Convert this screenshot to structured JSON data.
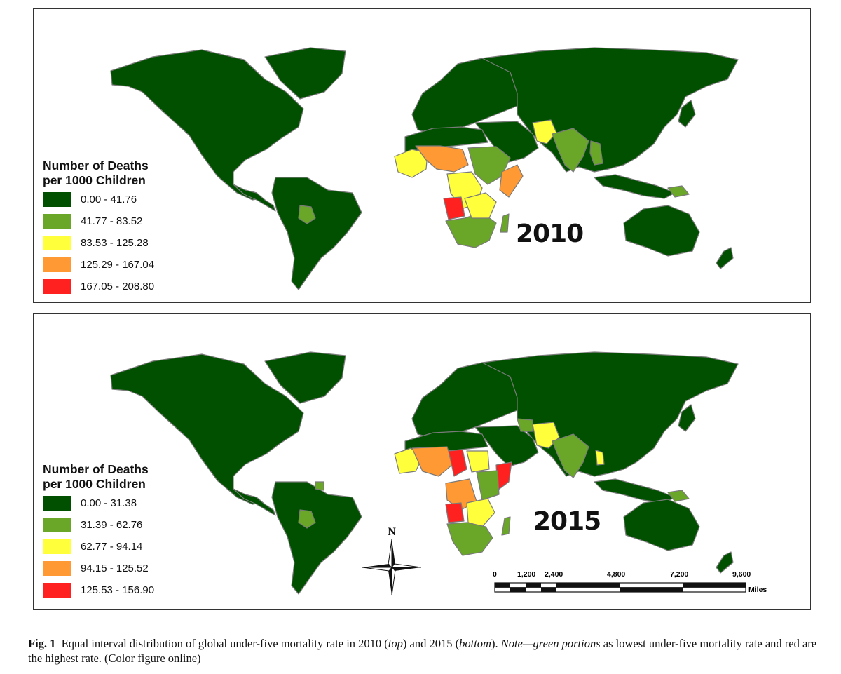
{
  "colors": {
    "class_1": "#005000",
    "class_2": "#6aa628",
    "class_3": "#ffff3c",
    "class_4": "#ff9933",
    "class_5": "#ff2020",
    "border": "#7a7a7a"
  },
  "maps": [
    {
      "year_label": "2010",
      "legend": {
        "title_line1": "Number of Deaths",
        "title_line2": "per 1000 Children",
        "classes": [
          {
            "label": "0.00 - 41.76",
            "color": "#005000"
          },
          {
            "label": "41.77 - 83.52",
            "color": "#6aa628"
          },
          {
            "label": "83.53 - 125.28",
            "color": "#ffff3c"
          },
          {
            "label": "125.29 - 167.04",
            "color": "#ff9933"
          },
          {
            "label": "167.05 - 208.80",
            "color": "#ff2020"
          }
        ]
      }
    },
    {
      "year_label": "2015",
      "legend": {
        "title_line1": "Number of Deaths",
        "title_line2": "per 1000 Children",
        "classes": [
          {
            "label": "0.00 - 31.38",
            "color": "#005000"
          },
          {
            "label": "31.39 - 62.76",
            "color": "#6aa628"
          },
          {
            "label": "62.77 - 94.14",
            "color": "#ffff3c"
          },
          {
            "label": "94.15 - 125.52",
            "color": "#ff9933"
          },
          {
            "label": "125.53 - 156.90",
            "color": "#ff2020"
          }
        ]
      },
      "compass_label": "N",
      "scale_bar": {
        "ticks": [
          "0",
          "1,200",
          "2,400",
          "4,800",
          "7,200",
          "9,600"
        ],
        "unit": "Miles"
      }
    }
  ],
  "caption": {
    "fig_label": "Fig. 1",
    "text_1": "Equal interval distribution of global under-five mortality rate in 2010 (",
    "top_word": "top",
    "text_2": ") and 2015 (",
    "bottom_word": "bottom",
    "text_3": "). ",
    "note_italic": "Note—green portions",
    "text_4": " as lowest under-five mortality rate and red are the highest rate. (Color figure online)"
  }
}
